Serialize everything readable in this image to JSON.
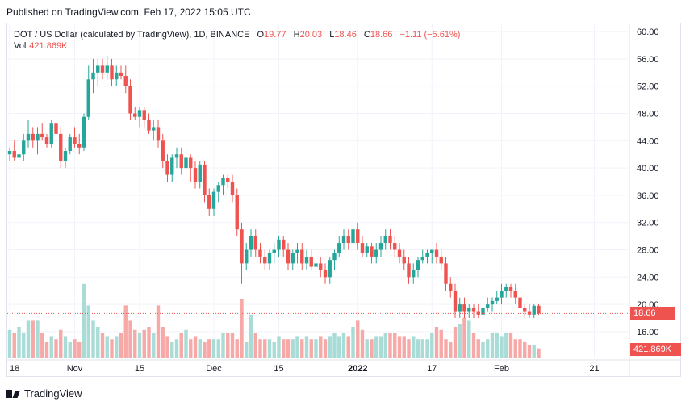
{
  "published": "Published on TradingView.com, Feb 17, 2022 15:05 UTC",
  "legend": {
    "symbol": "DOT / US Dollar (calculated by TradingView), 1D, BINANCE",
    "o_label": "O",
    "o": "19.77",
    "h_label": "H",
    "h": "20.03",
    "l_label": "L",
    "l": "18.46",
    "c_label": "C",
    "c": "18.66",
    "change": "−1.11 (−5.61%)",
    "vol_label": "Vol",
    "vol": "421.869K"
  },
  "price_tag": "18.66",
  "volume_tag": "421.869K",
  "brand": "TradingView",
  "colors": {
    "up": "#26a69a",
    "down": "#ef5350",
    "up_vol": "#a9dcd6",
    "down_vol": "#f7a9a7",
    "grid": "#f0f3fa"
  },
  "chart_data": {
    "type": "candlestick",
    "title": "DOT / US Dollar, 1D, BINANCE",
    "y_ticks": [
      "60.00",
      "56.00",
      "52.00",
      "48.00",
      "44.00",
      "40.00",
      "36.00",
      "32.00",
      "28.00",
      "24.00",
      "20.00",
      "16.00"
    ],
    "ylim": [
      12.2,
      61.2
    ],
    "x_ticks": [
      {
        "label": "18",
        "index": 0
      },
      {
        "label": "Nov",
        "index": 14
      },
      {
        "label": "15",
        "index": 28
      },
      {
        "label": "Dec",
        "index": 44
      },
      {
        "label": "15",
        "index": 58
      },
      {
        "label": "2022",
        "index": 75
      },
      {
        "label": "17",
        "index": 91
      },
      {
        "label": "Feb",
        "index": 106
      },
      {
        "label": "21",
        "index": 126
      }
    ],
    "candles": [
      [
        42,
        43,
        41,
        42.5,
        9
      ],
      [
        42.5,
        44,
        41,
        41.5,
        8
      ],
      [
        41.5,
        43,
        39,
        42,
        10
      ],
      [
        42,
        45,
        41,
        44,
        8
      ],
      [
        44,
        47,
        43,
        45,
        12
      ],
      [
        45,
        46,
        43,
        44,
        12
      ],
      [
        44,
        46,
        42,
        45,
        12
      ],
      [
        45,
        46.5,
        44,
        44.5,
        8
      ],
      [
        44.5,
        45,
        43,
        43.5,
        5
      ],
      [
        43.5,
        47,
        43,
        46.5,
        7
      ],
      [
        46.5,
        48,
        44,
        45,
        6
      ],
      [
        45,
        46,
        40,
        41,
        9
      ],
      [
        41,
        43,
        40,
        42.5,
        7
      ],
      [
        42.5,
        45,
        42,
        44.5,
        5
      ],
      [
        44.5,
        46,
        43,
        43.5,
        6
      ],
      [
        43.5,
        45,
        42,
        43,
        5
      ],
      [
        43,
        48,
        42.5,
        47.5,
        24
      ],
      [
        47.5,
        55,
        47,
        53,
        17
      ],
      [
        53,
        56,
        51,
        54,
        12
      ],
      [
        54,
        56,
        52,
        55,
        10
      ],
      [
        55,
        56,
        53,
        54,
        8
      ],
      [
        54,
        56.5,
        53,
        55,
        7
      ],
      [
        55,
        56,
        52,
        53,
        6
      ],
      [
        53,
        55,
        52,
        54,
        7
      ],
      [
        54,
        55,
        53,
        53.5,
        8
      ],
      [
        53.5,
        55,
        51,
        52,
        17
      ],
      [
        52,
        53,
        47,
        48,
        12
      ],
      [
        48,
        49,
        47,
        47.5,
        9
      ],
      [
        47.5,
        49,
        46,
        48.5,
        8
      ],
      [
        48.5,
        49,
        46,
        47,
        9
      ],
      [
        47,
        48,
        45,
        45.5,
        10
      ],
      [
        45.5,
        47,
        44,
        46,
        8
      ],
      [
        46,
        47,
        43,
        44,
        17
      ],
      [
        44,
        45,
        40,
        41,
        10
      ],
      [
        41,
        42,
        38,
        39,
        7
      ],
      [
        39,
        42,
        38,
        41.5,
        5
      ],
      [
        41.5,
        43,
        40,
        42,
        6
      ],
      [
        42,
        43,
        39,
        40,
        8
      ],
      [
        40,
        42,
        38,
        41.5,
        9
      ],
      [
        41.5,
        42,
        38,
        40,
        6
      ],
      [
        40,
        41,
        37,
        38,
        7
      ],
      [
        38,
        41,
        37,
        40.5,
        6
      ],
      [
        40.5,
        41,
        35,
        36,
        5
      ],
      [
        36,
        37,
        33,
        34,
        6
      ],
      [
        34,
        37,
        33,
        36.5,
        6
      ],
      [
        36.5,
        38,
        35,
        37.5,
        6
      ],
      [
        37.5,
        39,
        36,
        38.5,
        8
      ],
      [
        38.5,
        39,
        37,
        38,
        8
      ],
      [
        38,
        39,
        35,
        36,
        8
      ],
      [
        36,
        37,
        30,
        31,
        6
      ],
      [
        31,
        32,
        23,
        26,
        19
      ],
      [
        26,
        29,
        25,
        28,
        5
      ],
      [
        28,
        31,
        27,
        30,
        14
      ],
      [
        30,
        31,
        27,
        28,
        8
      ],
      [
        28,
        29,
        26,
        27,
        6
      ],
      [
        27,
        28,
        25,
        26,
        6
      ],
      [
        26,
        28,
        25,
        27.5,
        6
      ],
      [
        27.5,
        29,
        26,
        28,
        5
      ],
      [
        28,
        30,
        27,
        29.5,
        7
      ],
      [
        29.5,
        30,
        27,
        28,
        6
      ],
      [
        28,
        29,
        25,
        26,
        6
      ],
      [
        26,
        28,
        25,
        27.5,
        6
      ],
      [
        27.5,
        29,
        26,
        28,
        7
      ],
      [
        28,
        29,
        25,
        26,
        6
      ],
      [
        26,
        28,
        25,
        27,
        7
      ],
      [
        27,
        28,
        25,
        25.5,
        6
      ],
      [
        25.5,
        27,
        24,
        26,
        6
      ],
      [
        26,
        27,
        24,
        25,
        7
      ],
      [
        25,
        26,
        23,
        24,
        6
      ],
      [
        24,
        27,
        23,
        26.5,
        7
      ],
      [
        26.5,
        28,
        25,
        27.5,
        8
      ],
      [
        27.5,
        30,
        27,
        29,
        7
      ],
      [
        29,
        31,
        28,
        30,
        8
      ],
      [
        30,
        31,
        28,
        29,
        7
      ],
      [
        29,
        33,
        28,
        31,
        10
      ],
      [
        31,
        32,
        28,
        29,
        12
      ],
      [
        29,
        30,
        27,
        27.5,
        9
      ],
      [
        27.5,
        29,
        27,
        28.5,
        6
      ],
      [
        28.5,
        29,
        26,
        27,
        6
      ],
      [
        27,
        29,
        26,
        28,
        7
      ],
      [
        28,
        30,
        27,
        29,
        7
      ],
      [
        29,
        31,
        28,
        30,
        8
      ],
      [
        30,
        31,
        28,
        29,
        8
      ],
      [
        29,
        30,
        27,
        28,
        8
      ],
      [
        28,
        29,
        26,
        27,
        7
      ],
      [
        27,
        28,
        25,
        26,
        7
      ],
      [
        26,
        27,
        23,
        24,
        6
      ],
      [
        24,
        26,
        23,
        25,
        7
      ],
      [
        25,
        27,
        24,
        26.5,
        6
      ],
      [
        26.5,
        28,
        26,
        27,
        6
      ],
      [
        27,
        28,
        26,
        27.5,
        6
      ],
      [
        27.5,
        28,
        26,
        28,
        8
      ],
      [
        28,
        29,
        26,
        27,
        10
      ],
      [
        27,
        28,
        25,
        26,
        9
      ],
      [
        26,
        27,
        22,
        23,
        6
      ],
      [
        23,
        24,
        21,
        22,
        5
      ],
      [
        22,
        23,
        18,
        19,
        10
      ],
      [
        19,
        21,
        18,
        20,
        11
      ],
      [
        20,
        21,
        18,
        19,
        13
      ],
      [
        19,
        20,
        18,
        19.5,
        12
      ],
      [
        19.5,
        20,
        18,
        19,
        8
      ],
      [
        19,
        20,
        18,
        18.5,
        6
      ],
      [
        18.5,
        20,
        18,
        19.5,
        5
      ],
      [
        19.5,
        21,
        19,
        20,
        6
      ],
      [
        20,
        21,
        19,
        20.5,
        8
      ],
      [
        20.5,
        22,
        20,
        21,
        8
      ],
      [
        21,
        23,
        20,
        22,
        7
      ],
      [
        22,
        23,
        21,
        22.5,
        8
      ],
      [
        22.5,
        23,
        21,
        22,
        8
      ],
      [
        22,
        23,
        20,
        21,
        6
      ],
      [
        21,
        22,
        19,
        19.5,
        6
      ],
      [
        19.5,
        20,
        18,
        19,
        5
      ],
      [
        19,
        20,
        18,
        18.5,
        4
      ],
      [
        18.5,
        20,
        18,
        19.8,
        4
      ],
      [
        19.8,
        20.03,
        18.46,
        18.66,
        3
      ]
    ]
  }
}
